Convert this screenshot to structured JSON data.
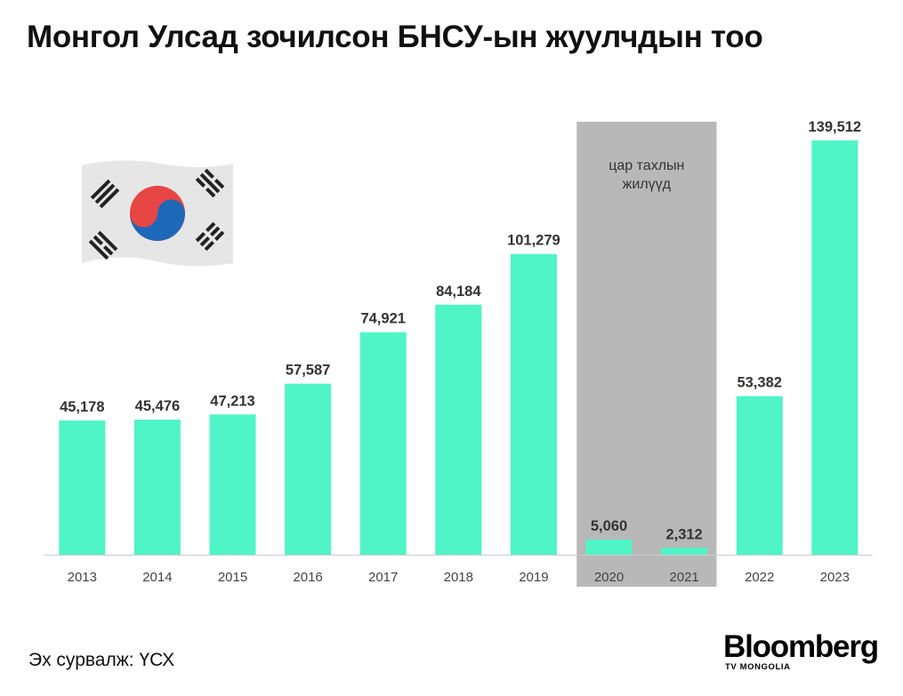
{
  "title": "Монгол Улсад зочилсон БНСУ-ын жуулчдын тоо",
  "source": "Эх сурвалж: ҮСХ",
  "logo": {
    "main": "Bloomberg",
    "sub": "TV MONGOLIA"
  },
  "colors": {
    "bar": "#4ff5c6",
    "pandemic_band": "#b8b8b8",
    "baseline": "#cccccc"
  },
  "icons": {
    "flag": "south-korea-flag-icon"
  },
  "chart_data": {
    "type": "bar",
    "title": "Монгол Улсад зочилсон БНСУ-ын жуулчдын тоо",
    "xlabel": "",
    "ylabel": "",
    "categories": [
      "2013",
      "2014",
      "2015",
      "2016",
      "2017",
      "2018",
      "2019",
      "2020",
      "2021",
      "2022",
      "2023"
    ],
    "values": [
      45178,
      45476,
      47213,
      57587,
      74921,
      84184,
      101279,
      5060,
      2312,
      53382,
      139512
    ],
    "value_labels": [
      "45,178",
      "45,476",
      "47,213",
      "57,587",
      "74,921",
      "84,184",
      "101,279",
      "5,060",
      "2,312",
      "53,382",
      "139,512"
    ],
    "ylim": [
      0,
      150000
    ],
    "grid": false,
    "legend": "none",
    "annotation": {
      "text_lines": [
        "цар тахлын",
        "жилүүд"
      ],
      "span_categories": [
        "2020",
        "2021"
      ]
    }
  }
}
